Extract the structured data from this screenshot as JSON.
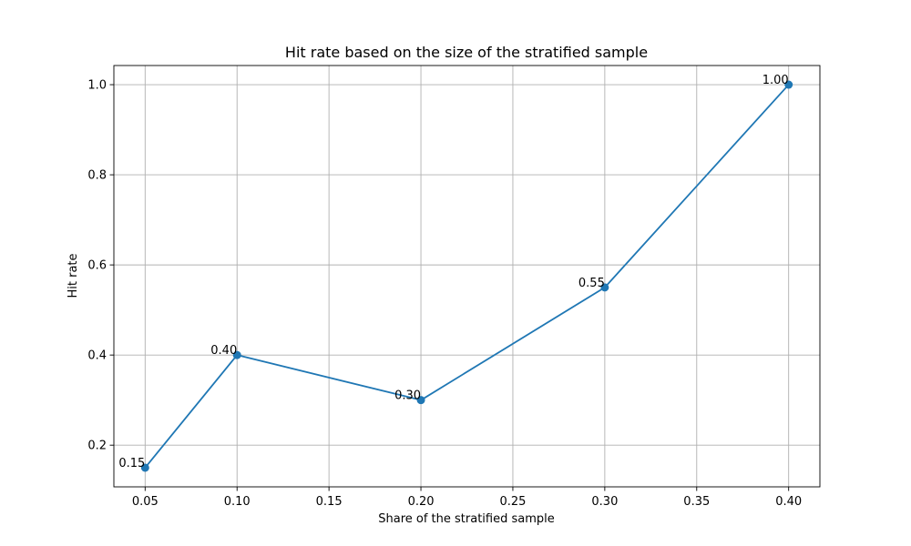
{
  "chart_data": {
    "type": "line",
    "title": "Hit rate based on the size of the stratified sample",
    "xlabel": "Share of the stratified sample",
    "ylabel": "Hit rate",
    "x_ticks": [
      "0.05",
      "0.10",
      "0.15",
      "0.20",
      "0.25",
      "0.30",
      "0.35",
      "0.40"
    ],
    "y_ticks": [
      "0.2",
      "0.4",
      "0.6",
      "0.8",
      "1.0"
    ],
    "xlim": [
      0.033,
      0.417
    ],
    "ylim": [
      0.1075,
      1.0425
    ],
    "grid": true,
    "series": [
      {
        "x": [
          0.05,
          0.1,
          0.2,
          0.3,
          0.4
        ],
        "values": [
          0.15,
          0.4,
          0.3,
          0.55,
          1.0
        ],
        "labels": [
          "0.15",
          "0.40",
          "0.30",
          "0.55",
          "1.00"
        ],
        "color": "#1f77b4",
        "marker": "circle"
      }
    ]
  }
}
